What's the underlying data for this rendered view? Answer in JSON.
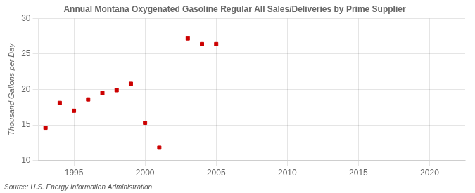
{
  "chart_data": {
    "type": "scatter",
    "title": "Annual Montana Oxygenated Gasoline Regular All Sales/Deliveries by Prime Supplier",
    "y_label": "Thousand Gallons per Day",
    "annotation": "Source: U.S. Energy Information Administration",
    "x": [
      1993,
      1994,
      1995,
      1996,
      1997,
      1998,
      1999,
      2000,
      2001,
      2003,
      2004,
      2005
    ],
    "values": [
      14.6,
      18.1,
      17.0,
      18.6,
      19.5,
      19.9,
      20.8,
      15.3,
      11.8,
      27.2,
      26.4,
      26.4
    ],
    "color": "#cc0000",
    "marker": "square",
    "xlim": [
      1992.5,
      2022.5
    ],
    "ylim": [
      10,
      30
    ],
    "xticks": [
      1995,
      2000,
      2005,
      2010,
      2015,
      2020
    ],
    "yticks": [
      10,
      15,
      20,
      25,
      30
    ],
    "grid": true
  }
}
